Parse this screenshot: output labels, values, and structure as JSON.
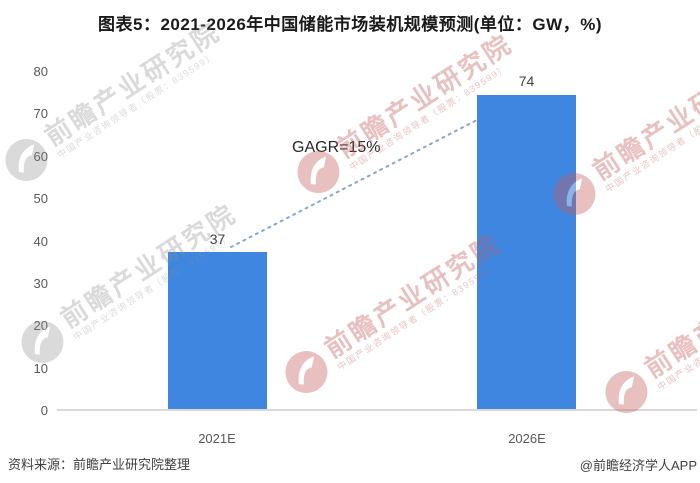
{
  "title": "图表5：2021-2026年中国储能市场装机规模预测(单位：GW，%)",
  "chart_data": {
    "type": "bar",
    "categories": [
      "2021E",
      "2026E"
    ],
    "values": [
      37,
      74
    ],
    "unit": "GW",
    "title": "图表5：2021-2026年中国储能市场装机规模预测(单位：GW，%)",
    "xlabel": "",
    "ylabel": "",
    "ylim": [
      0,
      80
    ],
    "yticks": [
      80,
      70,
      60,
      50,
      40,
      30,
      20,
      10,
      0
    ],
    "grid": false,
    "legend": false,
    "annotation": "GAGR=15%",
    "bar_color": "#3e86e0",
    "trend_line_color": "#84a7d4",
    "trend_line_style": "dotted"
  },
  "footer": {
    "source": "资料来源：前瞻产业研究院整理",
    "credit": "@前瞻经济学人APP"
  },
  "watermark": {
    "brand": "前瞻产业研究院",
    "subtitle": "中国产业咨询领导者（股票：839599）",
    "gray_color": "#8e8e90",
    "red_color": "#c65d5d"
  }
}
